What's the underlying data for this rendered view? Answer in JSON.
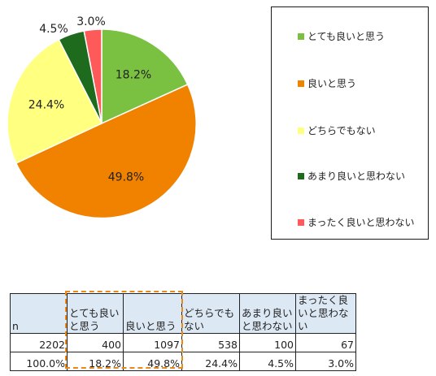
{
  "chart_data": {
    "type": "pie",
    "categories": [
      "とても良いと思う",
      "良いと思う",
      "どちらでもない",
      "あまり良いと思わない",
      "まったく良いと思わない"
    ],
    "values": [
      18.2,
      49.8,
      24.4,
      4.5,
      3.0
    ],
    "labels": [
      "18.2%",
      "49.8%",
      "24.4%",
      "4.5%",
      "3.0%"
    ],
    "colors": [
      "#7ac142",
      "#f08200",
      "#ffff80",
      "#1e6b1e",
      "#ff5a5a"
    ],
    "legend": "right",
    "start_angle": 0,
    "direction": "clockwise"
  },
  "table": {
    "header": [
      "n",
      "とても良いと思う",
      "良いと思う",
      "どちらでもない",
      "あまり良いと思わない",
      "まったく良いと思わない"
    ],
    "counts": [
      "2202",
      "400",
      "1097",
      "538",
      "100",
      "67"
    ],
    "percents": [
      "100.0%",
      "18.2%",
      "49.8%",
      "24.4%",
      "4.5%",
      "3.0%"
    ],
    "highlighted_columns": [
      "とても良いと思う",
      "良いと思う"
    ],
    "highlight_color": "#e9891a"
  }
}
